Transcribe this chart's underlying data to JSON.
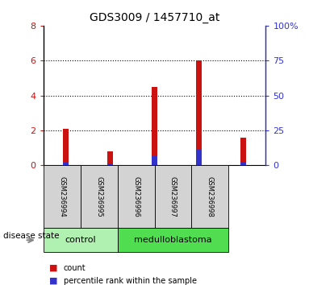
{
  "title": "GDS3009 / 1457710_at",
  "samples": [
    "GSM236994",
    "GSM236995",
    "GSM236996",
    "GSM236997",
    "GSM236998"
  ],
  "count_values": [
    2.1,
    0.8,
    4.5,
    6.0,
    1.6
  ],
  "percentile_values": [
    0.15,
    0.1,
    0.5,
    0.9,
    0.2
  ],
  "ylim_left": [
    0,
    8
  ],
  "ylim_right": [
    0,
    100
  ],
  "yticks_left": [
    0,
    2,
    4,
    6,
    8
  ],
  "yticks_right": [
    0,
    25,
    50,
    75,
    100
  ],
  "bar_width": 0.12,
  "count_color": "#cc1111",
  "percentile_color": "#3333cc",
  "count_color_label": "#cc1111",
  "percentile_color_label": "#3333cc",
  "control_label": "control",
  "medulloblastoma_label": "medulloblastoma",
  "disease_state_label": "disease state",
  "legend_count": "count",
  "legend_percentile": "percentile rank within the sample",
  "left_tick_color": "#cc1111",
  "right_tick_color": "#3333cc",
  "sample_box_color": "#d3d3d3",
  "control_bg": "#b0f0b0",
  "medulloblastoma_bg": "#50dd50",
  "n_control": 2,
  "n_medullo": 3
}
